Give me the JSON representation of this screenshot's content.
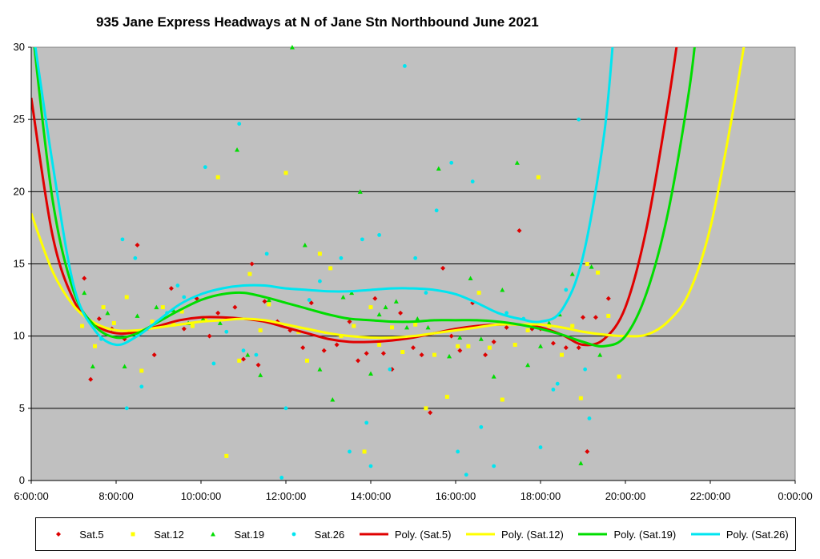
{
  "chart_data": {
    "type": "scatter",
    "title": "935 Jane Express Headways at N of Jane Stn Northbound June 2021",
    "xlabel": "",
    "ylabel": "",
    "xlim": [
      6,
      24
    ],
    "ylim": [
      0,
      30
    ],
    "x_tick_values": [
      6,
      8,
      10,
      12,
      14,
      16,
      18,
      20,
      22,
      24
    ],
    "x_tick_labels": [
      "6:00:00",
      "8:00:00",
      "10:00:00",
      "12:00:00",
      "14:00:00",
      "16:00:00",
      "18:00:00",
      "20:00:00",
      "22:00:00",
      "0:00:00"
    ],
    "y_tick_values": [
      0,
      5,
      10,
      15,
      20,
      25,
      30
    ],
    "y_tick_labels": [
      "0",
      "5",
      "10",
      "15",
      "20",
      "25",
      "30"
    ],
    "grid": "horizontal",
    "background": "#c0c0c0",
    "legend_position": "bottom",
    "series": [
      {
        "name": "Sat.5",
        "marker": "diamond",
        "color": "#dd0000",
        "x": [
          7.25,
          7.4,
          7.6,
          7.9,
          8.2,
          8.5,
          8.9,
          9.3,
          9.6,
          9.9,
          10.2,
          10.4,
          10.8,
          11.0,
          11.2,
          11.35,
          11.5,
          11.8,
          12.1,
          12.4,
          12.6,
          12.9,
          13.2,
          13.5,
          13.7,
          13.9,
          14.1,
          14.3,
          14.5,
          14.7,
          15.0,
          15.2,
          15.4,
          15.7,
          15.9,
          16.1,
          16.4,
          16.7,
          16.9,
          17.2,
          17.5,
          17.8,
          18.0,
          18.3,
          18.6,
          18.9,
          19.0,
          19.1,
          19.3,
          19.6
        ],
        "y": [
          14,
          7,
          11.2,
          10.5,
          9.8,
          16.3,
          8.7,
          13.3,
          10.5,
          12.6,
          10,
          11.6,
          12,
          8.4,
          15,
          8,
          12.4,
          11,
          10.4,
          9.2,
          12.3,
          9,
          9.4,
          11,
          8.3,
          8.8,
          12.6,
          8.8,
          7.7,
          11.6,
          9.2,
          8.7,
          4.7,
          14.7,
          10,
          9,
          12.3,
          8.7,
          9.6,
          10.6,
          17.3,
          10.5,
          10.5,
          9.5,
          9.2,
          9.2,
          11.3,
          2,
          11.3,
          12.6
        ]
      },
      {
        "name": "Sat.12",
        "marker": "square",
        "color": "#ffff00",
        "x": [
          7.2,
          7.5,
          7.7,
          7.95,
          8.25,
          8.6,
          8.85,
          9.1,
          9.35,
          9.55,
          9.8,
          10.1,
          10.4,
          10.6,
          10.9,
          11.15,
          11.4,
          11.6,
          12.0,
          12.3,
          12.5,
          12.8,
          13.05,
          13.3,
          13.6,
          13.85,
          14.0,
          14.2,
          14.5,
          14.75,
          15.05,
          15.3,
          15.5,
          15.8,
          16.05,
          16.3,
          16.55,
          16.8,
          17.1,
          17.4,
          17.7,
          17.95,
          18.2,
          18.5,
          18.75,
          18.95,
          19.1,
          19.35,
          19.6,
          19.85
        ],
        "y": [
          10.7,
          9.3,
          12,
          10.9,
          12.7,
          7.6,
          11,
          12,
          10.8,
          11.7,
          10.7,
          11.1,
          21,
          1.7,
          8.3,
          14.3,
          10.4,
          12.2,
          21.3,
          10.3,
          8.3,
          15.7,
          14.7,
          10,
          10.7,
          2,
          12,
          9.4,
          10.6,
          8.9,
          10.8,
          5,
          8.7,
          5.8,
          9.3,
          9.3,
          13,
          9.2,
          5.6,
          9.4,
          10.4,
          21,
          10.7,
          8.7,
          10.7,
          5.7,
          15,
          14.4,
          11.4,
          7.2
        ]
      },
      {
        "name": "Sat.19",
        "marker": "triangle",
        "color": "#00dd00",
        "x": [
          7.25,
          7.45,
          7.8,
          8.2,
          8.5,
          8.95,
          9.35,
          9.7,
          10.05,
          10.45,
          10.85,
          11.1,
          11.4,
          11.6,
          12.15,
          12.45,
          12.8,
          13.1,
          13.35,
          13.55,
          13.75,
          14.0,
          14.2,
          14.35,
          14.6,
          14.85,
          15.1,
          15.35,
          15.6,
          15.85,
          16.1,
          16.35,
          16.6,
          16.9,
          17.1,
          17.45,
          17.7,
          18.0,
          18.2,
          18.45,
          18.75,
          18.95,
          19.2,
          19.4
        ],
        "y": [
          13,
          7.9,
          11.6,
          7.9,
          11.4,
          12,
          11.8,
          10.9,
          11.2,
          10.9,
          22.9,
          8.7,
          7.3,
          12.5,
          30,
          16.3,
          7.7,
          5.6,
          12.7,
          13,
          20,
          7.4,
          11.5,
          12,
          12.4,
          10.6,
          11.2,
          10.6,
          21.6,
          8.6,
          9.9,
          14,
          9.8,
          7.2,
          13.2,
          22,
          8,
          9.3,
          10.9,
          11.5,
          14.3,
          1.2,
          14.8,
          8.7
        ]
      },
      {
        "name": "Sat.26",
        "marker": "circle",
        "color": "#00e5f0",
        "x": [
          7.65,
          8.15,
          8.25,
          8.45,
          8.6,
          9.2,
          9.45,
          9.6,
          10.1,
          10.3,
          10.6,
          10.9,
          11.0,
          11.3,
          11.55,
          12.0,
          11.9,
          12.55,
          12.8,
          13.3,
          13.5,
          13.8,
          13.9,
          14.0,
          14.2,
          14.45,
          14.8,
          15.05,
          15.3,
          15.55,
          15.9,
          16.05,
          16.25,
          16.4,
          16.6,
          16.9,
          17.2,
          17.6,
          18.0,
          18.3,
          18.4,
          18.6,
          18.9,
          19.05,
          19.15
        ],
        "y": [
          9.8,
          16.7,
          5,
          15.4,
          6.5,
          11.6,
          13.5,
          12.7,
          21.7,
          8.1,
          10.3,
          24.7,
          9,
          8.7,
          15.7,
          5,
          0.2,
          12.5,
          13.8,
          15.4,
          2,
          16.7,
          4,
          1,
          17,
          7.7,
          28.7,
          15.4,
          13,
          18.7,
          22,
          2,
          0.4,
          20.7,
          3.7,
          1,
          11.6,
          11.2,
          2.3,
          6.3,
          6.7,
          13.2,
          25,
          7.7,
          4.3
        ]
      }
    ],
    "trendlines": [
      {
        "name": "Poly. (Sat.5)",
        "color": "#e00000",
        "x": [
          6,
          6.5,
          7,
          7.5,
          8,
          8.5,
          9,
          9.5,
          10,
          10.5,
          11,
          11.5,
          12,
          12.5,
          13,
          13.5,
          14,
          14.5,
          15,
          15.5,
          16,
          16.5,
          17,
          17.5,
          18,
          18.5,
          19,
          19.5,
          20,
          20.5,
          21,
          21.3
        ],
        "y": [
          26.5,
          17,
          12.5,
          10.8,
          10.2,
          10.3,
          10.7,
          11.1,
          11.3,
          11.3,
          11.2,
          11,
          10.6,
          10.2,
          9.8,
          9.6,
          9.6,
          9.7,
          9.9,
          10.2,
          10.5,
          10.7,
          10.8,
          10.8,
          10.6,
          10.1,
          9.4,
          9.8,
          12,
          17.5,
          26,
          32
        ]
      },
      {
        "name": "Poly. (Sat.12)",
        "color": "#ffff00",
        "x": [
          6,
          6.5,
          7,
          7.5,
          8,
          8.5,
          9,
          9.5,
          10,
          10.5,
          11,
          11.5,
          12,
          12.5,
          13,
          13.5,
          14,
          14.5,
          15,
          15.5,
          16,
          16.5,
          17,
          17.5,
          18,
          18.5,
          19,
          19.5,
          20,
          20.5,
          21,
          21.5,
          22,
          22.5,
          22.9
        ],
        "y": [
          18.5,
          14.5,
          12.1,
          10.9,
          10.4,
          10.4,
          10.6,
          10.8,
          11,
          11.1,
          11.2,
          11.1,
          10.8,
          10.5,
          10.2,
          10,
          9.9,
          9.9,
          10,
          10.2,
          10.4,
          10.6,
          10.8,
          10.8,
          10.8,
          10.6,
          10.3,
          10.1,
          10,
          10.1,
          11,
          13,
          17.5,
          25,
          32
        ]
      },
      {
        "name": "Poly. (Sat.19)",
        "color": "#00dd00",
        "x": [
          6,
          6.5,
          7,
          7.5,
          8,
          8.5,
          9,
          9.5,
          10,
          10.5,
          11,
          11.5,
          12,
          12.5,
          13,
          13.5,
          14,
          14.5,
          15,
          15.5,
          16,
          16.5,
          17,
          17.5,
          18,
          18.5,
          19,
          19.5,
          20,
          20.5,
          21,
          21.5,
          21.7
        ],
        "y": [
          32,
          19.5,
          13.1,
          10.7,
          9.9,
          10.2,
          11,
          11.8,
          12.5,
          12.9,
          13,
          12.7,
          12.3,
          11.9,
          11.5,
          11.2,
          11.1,
          11,
          11,
          11.1,
          11.1,
          11.1,
          11,
          10.8,
          10.5,
          10.1,
          9.6,
          9.3,
          10,
          13,
          18.5,
          27,
          32
        ]
      },
      {
        "name": "Poly. (Sat.26)",
        "color": "#00e5f0",
        "x": [
          6,
          6.5,
          7,
          7.5,
          8,
          8.5,
          9,
          9.5,
          10,
          10.5,
          11,
          11.5,
          12,
          12.5,
          13,
          13.5,
          14,
          14.5,
          15,
          15.5,
          16,
          16.5,
          17,
          17.5,
          18,
          18.5,
          19,
          19.5,
          19.75
        ],
        "y": [
          32,
          22,
          13.5,
          10.4,
          9.4,
          10,
          11.1,
          12.2,
          12.9,
          13.3,
          13.5,
          13.5,
          13.3,
          13.2,
          13.1,
          13.1,
          13.2,
          13.3,
          13.3,
          13.2,
          12.9,
          12.3,
          11.6,
          11.2,
          11,
          11.8,
          15.5,
          24,
          32
        ]
      }
    ]
  }
}
